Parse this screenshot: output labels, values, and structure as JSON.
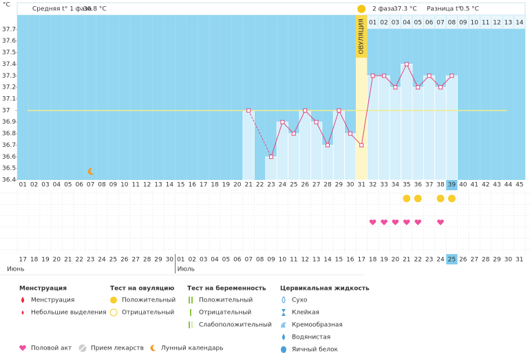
{
  "chart_data": {
    "type": "line",
    "unit": "°C",
    "header": {
      "phase1_label": "Средняя t° 1 фаза",
      "phase1_value": "36.8 °C",
      "phase2_label": "2 фаза",
      "phase2_value": "37.3 °C",
      "diff_label": "Разница t°",
      "diff_value": "0.5 °C"
    },
    "ylim": [
      36.4,
      37.8
    ],
    "yticks": [
      37.7,
      37.6,
      37.5,
      37.4,
      37.3,
      37.2,
      37.1,
      37,
      36.9,
      36.8,
      36.7,
      36.6,
      36.5,
      36.4
    ],
    "categories": [
      "01",
      "02",
      "03",
      "04",
      "05",
      "06",
      "07",
      "08",
      "09",
      "10",
      "11",
      "12",
      "13",
      "14",
      "15",
      "16",
      "17",
      "18",
      "19",
      "20",
      "21",
      "22",
      "23",
      "24",
      "25",
      "26",
      "27",
      "28",
      "29",
      "30",
      "31",
      "32",
      "33",
      "34",
      "35",
      "36",
      "37",
      "38",
      "39",
      "40",
      "41",
      "42",
      "43",
      "44",
      "45"
    ],
    "values": [
      null,
      null,
      null,
      null,
      null,
      null,
      null,
      null,
      null,
      null,
      null,
      null,
      null,
      null,
      null,
      null,
      null,
      null,
      null,
      null,
      37,
      null,
      36.6,
      36.9,
      36.8,
      37,
      36.9,
      36.7,
      37,
      36.8,
      36.7,
      37.3,
      37.3,
      37.2,
      37.4,
      37.2,
      37.3,
      37.2,
      37.3,
      null,
      null,
      null,
      null,
      null,
      null
    ],
    "coverline": 37,
    "line_color": "#e2457a",
    "ovulation": {
      "day": "31",
      "label": "ОВУЛЯЦИЯ"
    },
    "phase2_days": [
      "01",
      "02",
      "03",
      "04",
      "05",
      "06",
      "07",
      "08",
      "09",
      "10",
      "11",
      "12",
      "13",
      "14"
    ],
    "today": "39",
    "moon_days": [
      "07"
    ],
    "ovulation_test_positive": [
      "35",
      "36",
      "38",
      "39"
    ],
    "intercourse": [
      "32",
      "33",
      "34",
      "35",
      "36",
      "38"
    ],
    "dates": [
      {
        "label": "17",
        "weekend": true
      },
      {
        "label": "18",
        "weekend": false
      },
      {
        "label": "19",
        "weekend": false
      },
      {
        "label": "20",
        "weekend": false
      },
      {
        "label": "21",
        "weekend": false
      },
      {
        "label": "22",
        "weekend": false
      },
      {
        "label": "23",
        "weekend": true
      },
      {
        "label": "24",
        "weekend": true
      },
      {
        "label": "25",
        "weekend": false
      },
      {
        "label": "26",
        "weekend": false
      },
      {
        "label": "27",
        "weekend": false
      },
      {
        "label": "28",
        "weekend": false
      },
      {
        "label": "29",
        "weekend": false
      },
      {
        "label": "30",
        "weekend": true
      },
      {
        "label": "01",
        "weekend": true
      },
      {
        "label": "02",
        "weekend": false
      },
      {
        "label": "03",
        "weekend": false
      },
      {
        "label": "04",
        "weekend": false
      },
      {
        "label": "05",
        "weekend": false
      },
      {
        "label": "06",
        "weekend": false
      },
      {
        "label": "07",
        "weekend": true
      },
      {
        "label": "08",
        "weekend": true
      },
      {
        "label": "09",
        "weekend": false
      },
      {
        "label": "10",
        "weekend": false
      },
      {
        "label": "11",
        "weekend": false
      },
      {
        "label": "12",
        "weekend": false
      },
      {
        "label": "13",
        "weekend": false
      },
      {
        "label": "14",
        "weekend": true
      },
      {
        "label": "15",
        "weekend": true
      },
      {
        "label": "16",
        "weekend": false
      },
      {
        "label": "17",
        "weekend": false
      },
      {
        "label": "18",
        "weekend": false
      },
      {
        "label": "19",
        "weekend": false
      },
      {
        "label": "20",
        "weekend": false
      },
      {
        "label": "21",
        "weekend": true
      },
      {
        "label": "22",
        "weekend": true
      },
      {
        "label": "23",
        "weekend": false
      },
      {
        "label": "24",
        "weekend": false
      },
      {
        "label": "25",
        "weekend": false
      },
      {
        "label": "26",
        "weekend": false
      },
      {
        "label": "27",
        "weekend": false
      },
      {
        "label": "28",
        "weekend": true
      },
      {
        "label": "29",
        "weekend": true
      },
      {
        "label": "30",
        "weekend": false
      },
      {
        "label": "31",
        "weekend": false
      }
    ],
    "months": [
      {
        "label": "Июнь",
        "first_day": "01"
      },
      {
        "label": "Июль",
        "first_day": "15"
      }
    ],
    "legend": {
      "groups": [
        {
          "title": "Менструация",
          "items": [
            "Менструация",
            "Небольшие выделения"
          ]
        },
        {
          "title": "Тест на овуляцию",
          "items": [
            "Положительный",
            "Отрицательный"
          ]
        },
        {
          "title": "Тест на беременность",
          "items": [
            "Положительный",
            "Отрицательный",
            "Слабоположительный"
          ]
        },
        {
          "title": "Цервикальная жидкость",
          "items": [
            "Сухо",
            "Клейкая",
            "Кремообразная",
            "Водянистая",
            "Яичный белок"
          ]
        }
      ],
      "extra": [
        "Половой акт",
        "Прием лекарств",
        "Лунный календарь"
      ]
    }
  }
}
